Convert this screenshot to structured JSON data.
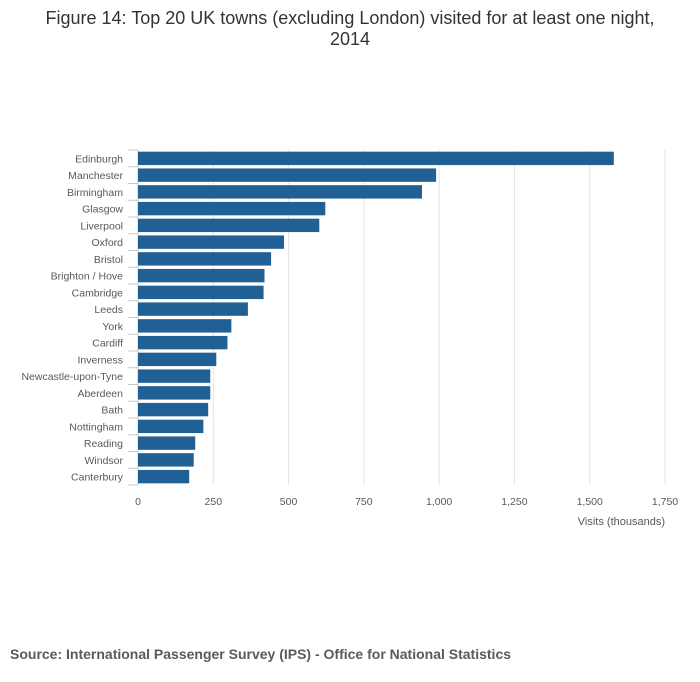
{
  "page": {
    "title": "Figure 14: Top 20 UK towns (excluding London) visited for at least one night, 2014",
    "source": "Source: International Passenger Survey (IPS) - Office for National Statistics"
  },
  "chart_data": {
    "type": "bar",
    "orientation": "horizontal",
    "title": "Figure 14: Top 20 UK towns (excluding London) visited for at least one night, 2014",
    "xlabel": "Visits (thousands)",
    "ylabel": "",
    "xlim": [
      0,
      1750
    ],
    "xticks": [
      0,
      250,
      500,
      750,
      1000,
      1250,
      1500,
      1750
    ],
    "xtick_labels": [
      "0",
      "250",
      "500",
      "750",
      "1,000",
      "1,250",
      "1,500",
      "1,750"
    ],
    "grid": true,
    "bar_color": "#206095",
    "categories": [
      "Edinburgh",
      "Manchester",
      "Birmingham",
      "Glasgow",
      "Liverpool",
      "Oxford",
      "Bristol",
      "Brighton / Hove",
      "Cambridge",
      "Leeds",
      "York",
      "Cardiff",
      "Inverness",
      "Newcastle-upon-Tyne",
      "Aberdeen",
      "Bath",
      "Nottingham",
      "Reading",
      "Windsor",
      "Canterbury"
    ],
    "values": [
      1580,
      990,
      943,
      622,
      602,
      485,
      442,
      420,
      417,
      365,
      310,
      297,
      260,
      240,
      240,
      233,
      217,
      190,
      185,
      170
    ]
  }
}
